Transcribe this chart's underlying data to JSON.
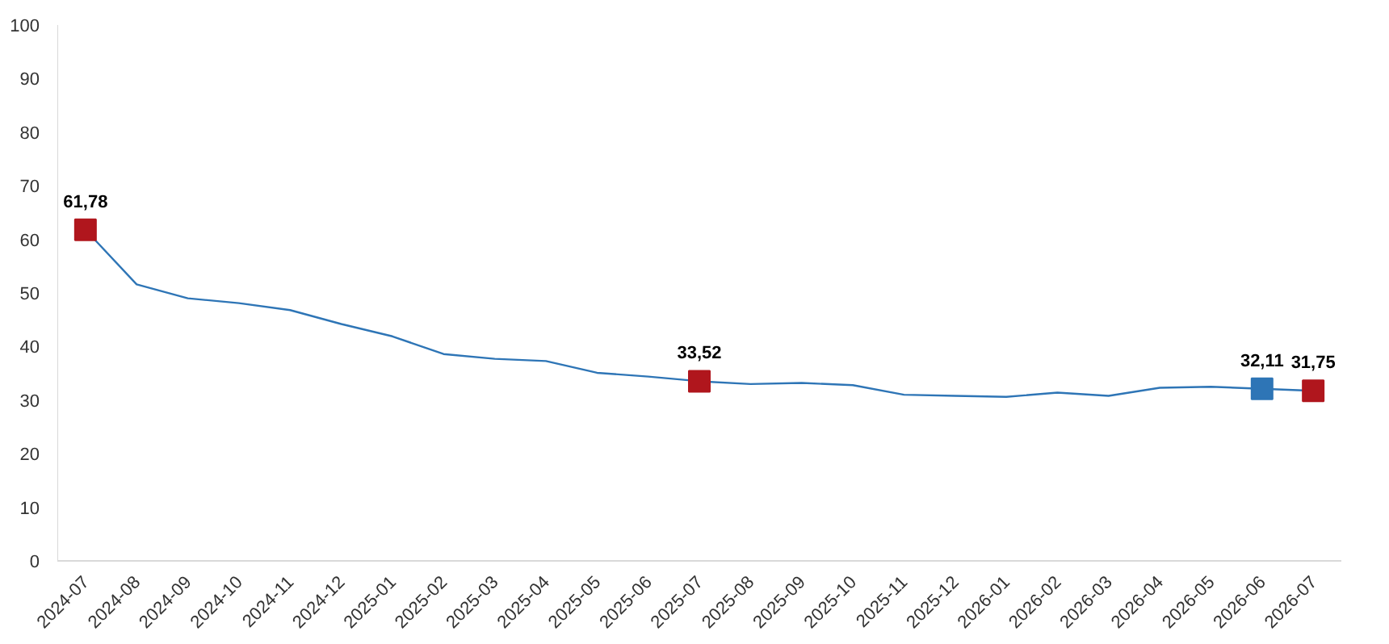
{
  "chart_data": {
    "type": "line",
    "categories": [
      "2024-07",
      "2024-08",
      "2024-09",
      "2024-10",
      "2024-11",
      "2024-12",
      "2025-01",
      "2025-02",
      "2025-03",
      "2025-04",
      "2025-05",
      "2025-06",
      "2025-07",
      "2025-08",
      "2025-09",
      "2025-10",
      "2025-11",
      "2025-12",
      "2026-01",
      "2026-02",
      "2026-03",
      "2026-04",
      "2026-05",
      "2026-06",
      "2026-07"
    ],
    "ylim": [
      0,
      100
    ],
    "yticks": [
      0,
      10,
      20,
      30,
      40,
      50,
      60,
      70,
      80,
      90,
      100
    ],
    "grid": false,
    "series": [
      {
        "color": "#2e75b6",
        "marker": "none",
        "values": [
          61.78,
          51.6,
          49.0,
          48.1,
          46.8,
          44.2,
          41.9,
          38.6,
          37.7,
          37.3,
          35.1,
          34.4,
          33.52,
          33.0,
          33.2,
          32.8,
          31.0,
          30.8,
          30.6,
          31.4,
          30.8,
          32.3,
          32.5,
          32.11,
          31.75
        ]
      },
      {
        "type": "scatter",
        "marker": "square",
        "colors": [
          "#b0161d",
          null,
          null,
          null,
          null,
          null,
          null,
          null,
          null,
          null,
          null,
          null,
          "#b0161d",
          null,
          null,
          null,
          null,
          null,
          null,
          null,
          null,
          null,
          null,
          "#2e75b6",
          "#b0161d"
        ],
        "values": [
          61.78,
          null,
          null,
          null,
          null,
          null,
          null,
          null,
          null,
          null,
          null,
          null,
          33.52,
          null,
          null,
          null,
          null,
          null,
          null,
          null,
          null,
          null,
          null,
          32.11,
          31.75
        ],
        "value_labels": [
          "61,78",
          null,
          null,
          null,
          null,
          null,
          null,
          null,
          null,
          null,
          null,
          null,
          "33,52",
          null,
          null,
          null,
          null,
          null,
          null,
          null,
          null,
          null,
          null,
          "32,11",
          "31,75"
        ]
      }
    ]
  }
}
